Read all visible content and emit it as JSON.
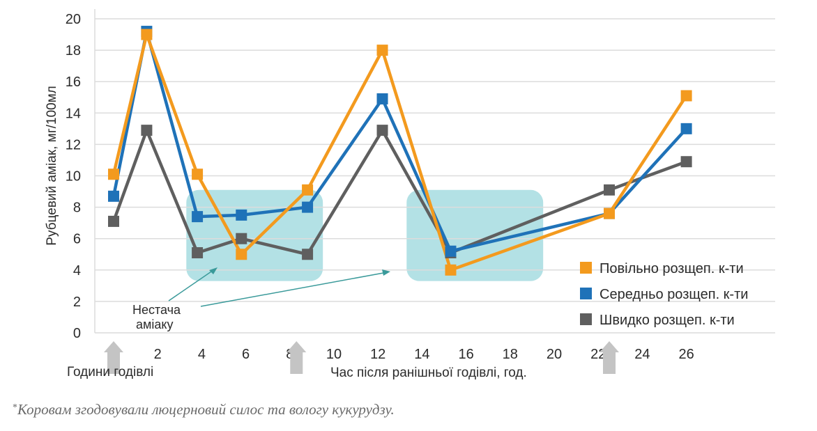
{
  "chart_data": {
    "type": "line",
    "ylabel": "Рубцевий аміак, мг/100мл",
    "xlabel": "Час після ранішньої годівлі, год.",
    "x_sublabel": "Години годівлі",
    "xlim": [
      0,
      30
    ],
    "ylim": [
      0,
      20
    ],
    "xticks": [
      0,
      2,
      4,
      6,
      8,
      10,
      12,
      14,
      16,
      18,
      20,
      22,
      24,
      26
    ],
    "yticks": [
      0,
      2,
      4,
      6,
      8,
      10,
      12,
      14,
      16,
      18,
      20
    ],
    "grid": true,
    "legend_position": "bottom-right",
    "feeding_hours": [
      0,
      8.3,
      22.5
    ],
    "shortage_zones": [
      {
        "x_start": 3.3,
        "x_end": 9.5,
        "y_start": 3.3,
        "y_end": 9.1
      },
      {
        "x_start": 13.3,
        "x_end": 19.5,
        "y_start": 3.3,
        "y_end": 9.1
      }
    ],
    "annotation": {
      "line1": "Нестача",
      "line2": "аміаку"
    },
    "series": [
      {
        "name": "Повільно розщеп. к-ти",
        "color": "#f39a1e",
        "x": [
          0,
          1.5,
          3.8,
          5.8,
          8.8,
          12.2,
          15.3,
          22.5,
          26
        ],
        "y": [
          10.1,
          19.0,
          10.1,
          5.0,
          9.1,
          18.0,
          4.0,
          7.6,
          15.1
        ]
      },
      {
        "name": "Середньо розщеп. к-ти",
        "color": "#1f72b8",
        "x": [
          0,
          1.5,
          3.8,
          5.8,
          8.8,
          12.2,
          15.3,
          22.5,
          26
        ],
        "y": [
          8.7,
          19.2,
          7.4,
          7.5,
          8.0,
          14.9,
          5.2,
          7.6,
          13.0
        ]
      },
      {
        "name": "Швидко розщеп. к-ти",
        "color": "#5f5f5f",
        "x": [
          0,
          1.5,
          3.8,
          5.8,
          8.8,
          12.2,
          15.3,
          22.5,
          26
        ],
        "y": [
          7.1,
          12.9,
          5.1,
          6.0,
          5.0,
          12.9,
          5.1,
          9.1,
          10.9
        ]
      }
    ]
  },
  "footnote": {
    "marker": "*",
    "text": "Коровам згодовували люцерновий силос та вологу кукурудзу."
  }
}
